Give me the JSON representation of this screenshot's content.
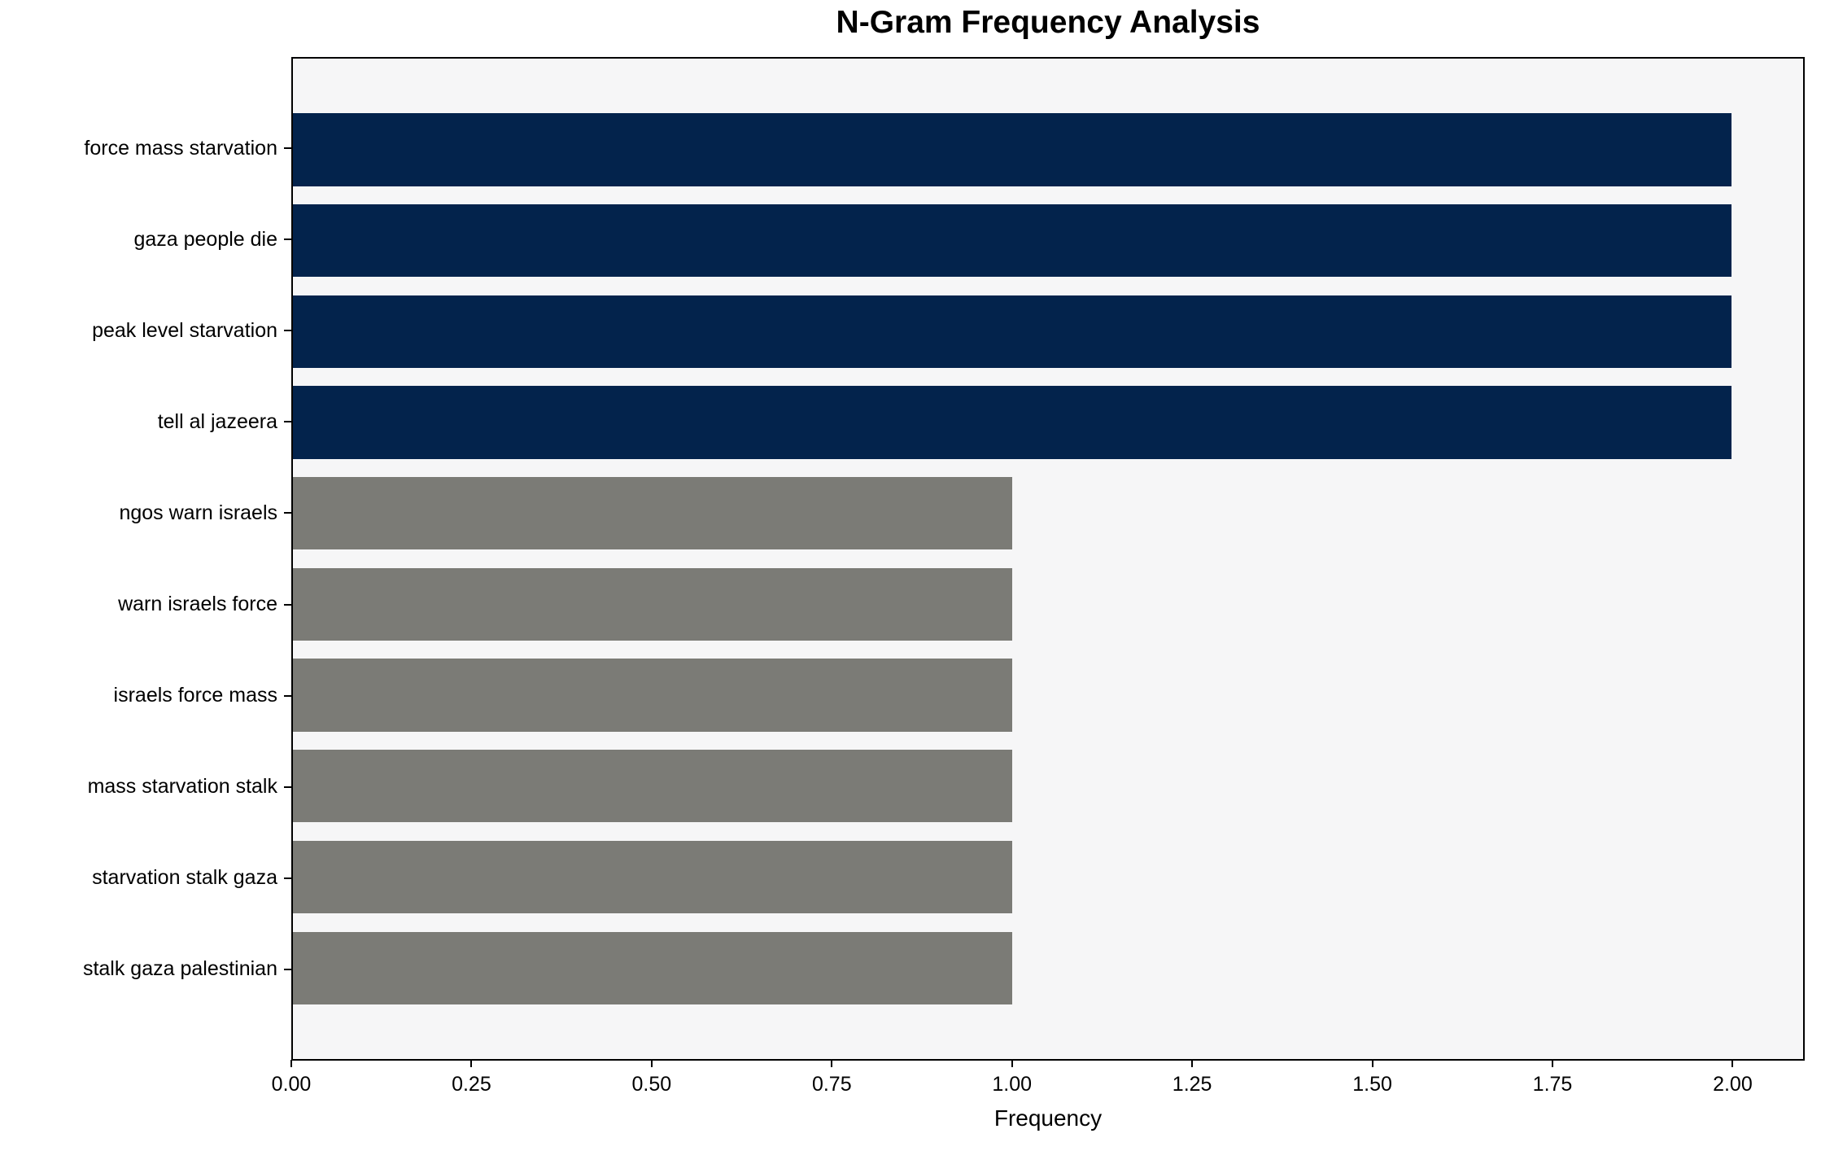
{
  "figure": {
    "title": "N-Gram Frequency Analysis",
    "xlabel": "Frequency"
  },
  "colors": {
    "high_freq_bar": "#03234c",
    "low_freq_bar": "#7b7b76",
    "plot_background": "#f6f6f7",
    "figure_background": "#ffffff",
    "axis_line": "#000000",
    "text": "#000000"
  },
  "chart_data": {
    "type": "bar",
    "orientation": "horizontal",
    "title": "N-Gram Frequency Analysis",
    "xlabel": "Frequency",
    "ylabel": "",
    "xlim": [
      0,
      2.1
    ],
    "grid": false,
    "legend": false,
    "x_ticks": [
      0,
      0.25,
      0.5,
      0.75,
      1.0,
      1.25,
      1.5,
      1.75,
      2.0
    ],
    "x_tick_labels": [
      "0.00",
      "0.25",
      "0.50",
      "0.75",
      "1.00",
      "1.25",
      "1.50",
      "1.75",
      "2.00"
    ],
    "categories": [
      "force mass starvation",
      "gaza people die",
      "peak level starvation",
      "tell al jazeera",
      "ngos warn israels",
      "warn israels force",
      "israels force mass",
      "mass starvation stalk",
      "starvation stalk gaza",
      "stalk gaza palestinian"
    ],
    "values": [
      2,
      2,
      2,
      2,
      1,
      1,
      1,
      1,
      1,
      1
    ],
    "bar_color_keys": [
      "high",
      "high",
      "high",
      "high",
      "low",
      "low",
      "low",
      "low",
      "low",
      "low"
    ]
  }
}
